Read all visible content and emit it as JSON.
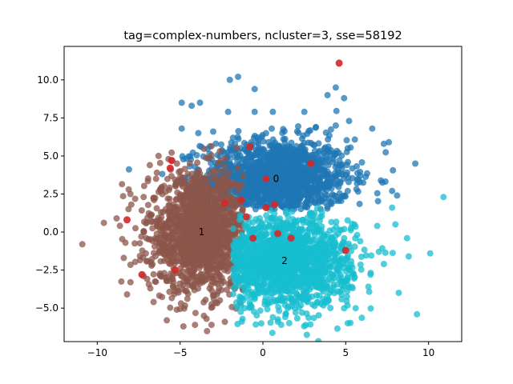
{
  "chart_data": {
    "type": "scatter",
    "title": "tag=complex-numbers, ncluster=3, sse=58192",
    "xlabel": "",
    "ylabel": "",
    "xlim": [
      -12,
      12
    ],
    "ylim": [
      -7.2,
      12.2
    ],
    "xticks": [
      -10,
      -5,
      0,
      5,
      10
    ],
    "yticks": [
      -5.0,
      -2.5,
      0.0,
      2.5,
      5.0,
      7.5,
      10.0
    ],
    "ytick_labels": [
      "−5.0",
      "−2.5",
      "0.0",
      "2.5",
      "5.0",
      "7.5",
      "10.0"
    ],
    "xtick_labels": [
      "−10",
      "−5",
      "0",
      "5",
      "10"
    ],
    "grid": false,
    "clusters": [
      {
        "label": "0",
        "color": "#1f77b4",
        "center": [
          0.8,
          3.5
        ],
        "spread": [
          2.2,
          1.3
        ],
        "bounds": {
          "ymin": 1.5
        },
        "outliers": [
          [
            -2.0,
            10.0
          ],
          [
            -1.5,
            10.2
          ],
          [
            -0.5,
            9.4
          ],
          [
            -4.9,
            8.5
          ],
          [
            -4.3,
            8.3
          ],
          [
            -3.8,
            8.5
          ],
          [
            -2.1,
            7.9
          ],
          [
            -0.5,
            7.9
          ],
          [
            0.6,
            7.9
          ],
          [
            2.5,
            7.9
          ],
          [
            3.9,
            9.0
          ],
          [
            4.4,
            9.5
          ],
          [
            4.9,
            8.8
          ],
          [
            5.2,
            7.3
          ],
          [
            6.6,
            6.8
          ],
          [
            7.6,
            5.9
          ],
          [
            9.2,
            4.5
          ],
          [
            -4.9,
            6.8
          ],
          [
            -3.9,
            6.5
          ],
          [
            -3.0,
            6.6
          ],
          [
            7.8,
            2.7
          ],
          [
            8.1,
            2.4
          ],
          [
            7.3,
            5.8
          ],
          [
            4.4,
            7.0
          ],
          [
            3.2,
            6.9
          ]
        ]
      },
      {
        "label": "1",
        "color": "#8c564b",
        "center": [
          -3.7,
          0.0
        ],
        "spread": [
          1.6,
          1.9
        ],
        "bounds": {
          "xmax": -1.2
        },
        "outliers": [
          [
            -10.9,
            -0.8
          ],
          [
            -9.6,
            0.6
          ],
          [
            -8.3,
            -0.7
          ],
          [
            -8.1,
            2.8
          ],
          [
            -8.2,
            -4.1
          ],
          [
            -8.0,
            2.5
          ],
          [
            -7.2,
            -2.9
          ],
          [
            -6.6,
            -4.6
          ],
          [
            -5.7,
            4.8
          ],
          [
            -6.4,
            3.9
          ],
          [
            -5.8,
            -5.8
          ],
          [
            -5.2,
            -5.1
          ],
          [
            -4.8,
            -6.2
          ],
          [
            -4.1,
            -6.1
          ],
          [
            -3.1,
            -6.1
          ],
          [
            -3.4,
            -5.7
          ],
          [
            -6.3,
            5.0
          ],
          [
            -7.2,
            2.3
          ],
          [
            -6.8,
            -3.7
          ],
          [
            -8.4,
            -1.7
          ]
        ]
      },
      {
        "label": "2",
        "color": "#17becf",
        "center": [
          1.3,
          -1.9
        ],
        "spread": [
          2.0,
          1.5
        ],
        "bounds": {
          "xmin": -1.8,
          "ymax": 1.6
        },
        "outliers": [
          [
            10.9,
            2.3
          ],
          [
            9.3,
            -5.4
          ],
          [
            10.1,
            -1.4
          ],
          [
            8.8,
            -1.6
          ],
          [
            8.7,
            -0.4
          ],
          [
            7.3,
            -2.1
          ],
          [
            8.2,
            -4.0
          ],
          [
            6.5,
            -2.8
          ],
          [
            7.0,
            -1.3
          ],
          [
            -1.1,
            -5.0
          ],
          [
            -0.1,
            -6.0
          ],
          [
            0.6,
            -5.6
          ],
          [
            1.5,
            -5.0
          ],
          [
            2.3,
            -4.8
          ],
          [
            5.6,
            -5.0
          ],
          [
            7.8,
            1.6
          ],
          [
            6.9,
            0.4
          ],
          [
            8.0,
            0.5
          ],
          [
            -0.5,
            -4.4
          ],
          [
            3.7,
            -4.6
          ]
        ]
      }
    ],
    "counts": [
      1500,
      1500,
      1500
    ],
    "centroids": [
      [
        4.6,
        11.1
      ],
      [
        -0.8,
        5.6
      ],
      [
        -5.5,
        4.7
      ],
      [
        -5.6,
        4.2
      ],
      [
        -8.2,
        0.8
      ],
      [
        -7.3,
        -2.8
      ],
      [
        -5.3,
        -2.5
      ],
      [
        -2.3,
        1.9
      ],
      [
        -1.3,
        2.1
      ],
      [
        0.2,
        3.5
      ],
      [
        2.9,
        4.5
      ],
      [
        -1.0,
        1.0
      ],
      [
        0.2,
        1.6
      ],
      [
        0.7,
        1.8
      ],
      [
        -0.6,
        -0.4
      ],
      [
        0.9,
        -0.1
      ],
      [
        1.7,
        -0.4
      ],
      [
        5.0,
        -1.2
      ]
    ],
    "centroid_color": "#d62728"
  }
}
